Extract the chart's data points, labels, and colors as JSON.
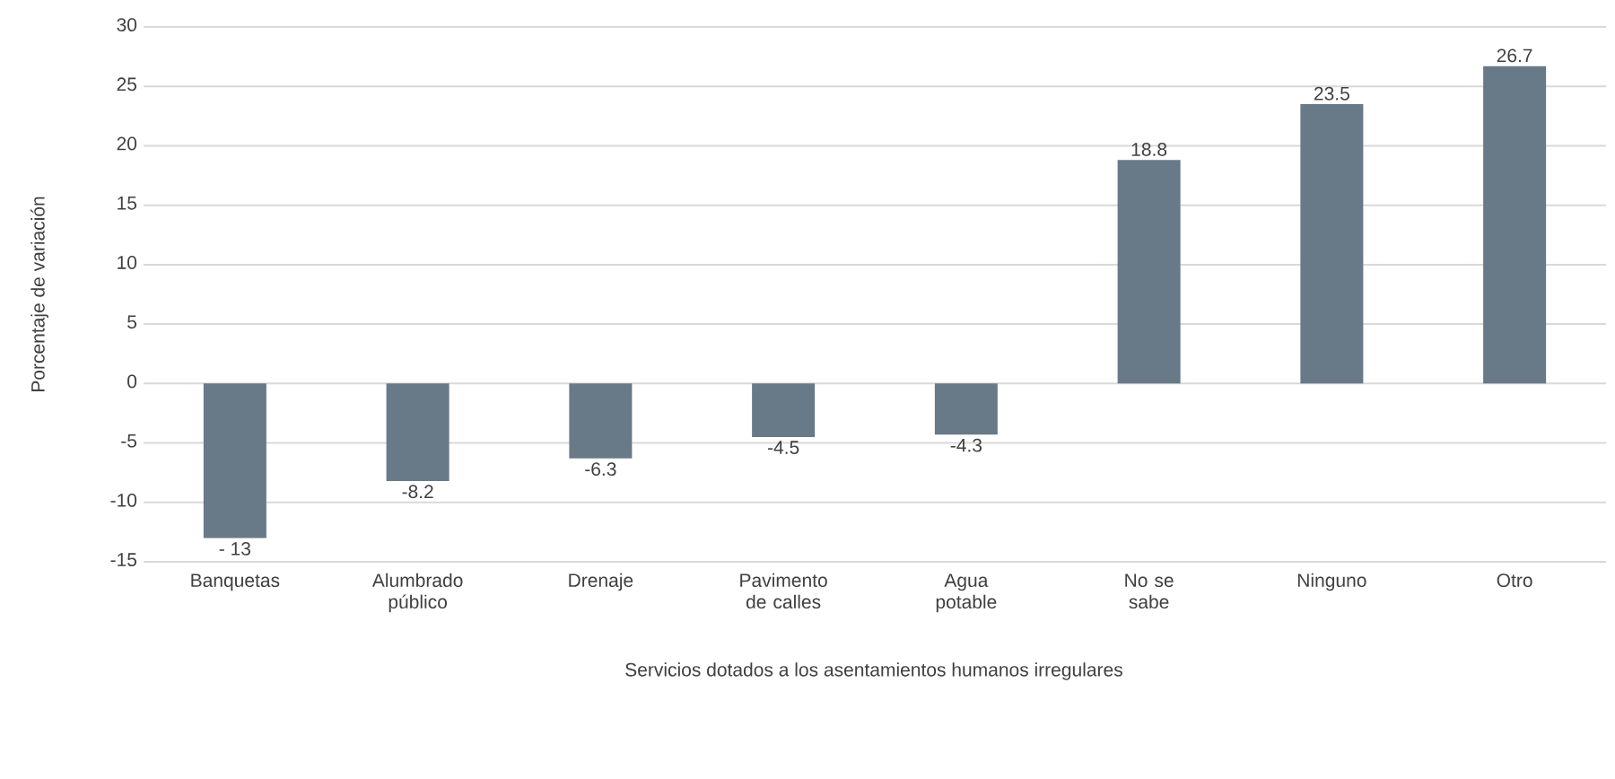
{
  "chart_data": {
    "type": "bar",
    "xlabel": "Servicios dotados a los asentamientos humanos irregulares",
    "ylabel": "Porcentaje de variación",
    "categories": [
      "Banquetas",
      "Alumbrado público",
      "Drenaje",
      "Pavimento de calles",
      "Agua potable",
      "No se sabe",
      "Ninguno",
      "Otro"
    ],
    "values": [
      -13,
      -8.2,
      -6.3,
      -4.5,
      -4.3,
      18.8,
      23.5,
      26.7
    ],
    "value_labels": [
      "- 13",
      "-8.2",
      "-6.3",
      "-4.5",
      "-4.3",
      "18.8",
      "23.5",
      "26.7"
    ],
    "color": "#687987",
    "ylim": [
      -15,
      30
    ],
    "yticks": [
      -15,
      -10,
      -5,
      0,
      5,
      10,
      15,
      20,
      25,
      30
    ],
    "grid": "y"
  }
}
